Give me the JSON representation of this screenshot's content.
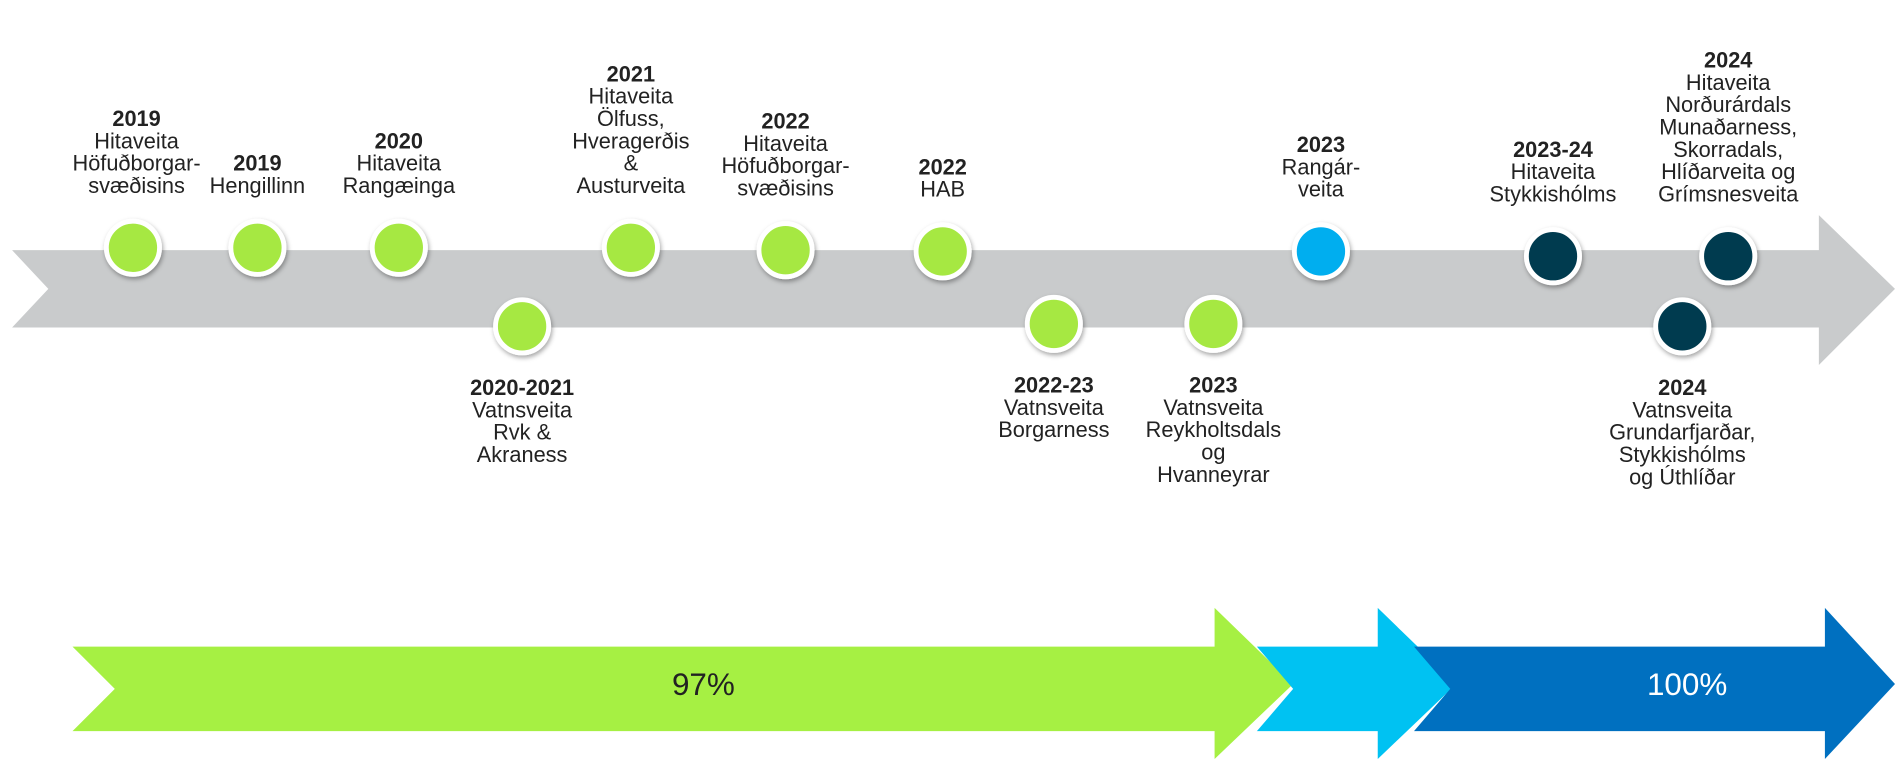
{
  "milestones": [
    {
      "year": "2019",
      "lines": [
        "Hitaveita",
        "Höfuðborgar-",
        "svæðisins"
      ]
    },
    {
      "year": "2019",
      "lines": [
        "Hengillinn"
      ]
    },
    {
      "year": "2020",
      "lines": [
        "Hitaveita",
        "Rangæinga"
      ]
    },
    {
      "year": "2020-2021",
      "lines": [
        "Vatnsveita",
        "Rvk &",
        "Akraness"
      ]
    },
    {
      "year": "2021",
      "lines": [
        "Hitaveita",
        "Ölfuss,",
        "Hveragerðis",
        "&",
        "Austurveita"
      ]
    },
    {
      "year": "2022",
      "lines": [
        "Hitaveita",
        "Höfuðborgar-",
        "svæðisins"
      ]
    },
    {
      "year": "2022",
      "lines": [
        "HAB"
      ]
    },
    {
      "year": "2022-23",
      "lines": [
        "Vatnsveita",
        "Borgarness"
      ]
    },
    {
      "year": "2023",
      "lines": [
        "Vatnsveita",
        "Reykholtsdals",
        "og",
        "Hvanneyrar"
      ]
    },
    {
      "year": "2023",
      "lines": [
        "Rangár-",
        "veita"
      ]
    },
    {
      "year": "2023-24",
      "lines": [
        "Hitaveita",
        "Stykkishólms"
      ]
    },
    {
      "year": "2024",
      "lines": [
        "Vatnsveita",
        "Grundarfjarðar,",
        "Stykkishólms",
        "og Úthlíðar"
      ]
    },
    {
      "year": "2024",
      "lines": [
        "Hitaveita",
        "Norðurárdals",
        "Munaðarness,",
        "Skorradals,",
        "Hlíðarveita og",
        "Grímsnesveita"
      ]
    }
  ],
  "progress": [
    "97%",
    "100%"
  ]
}
